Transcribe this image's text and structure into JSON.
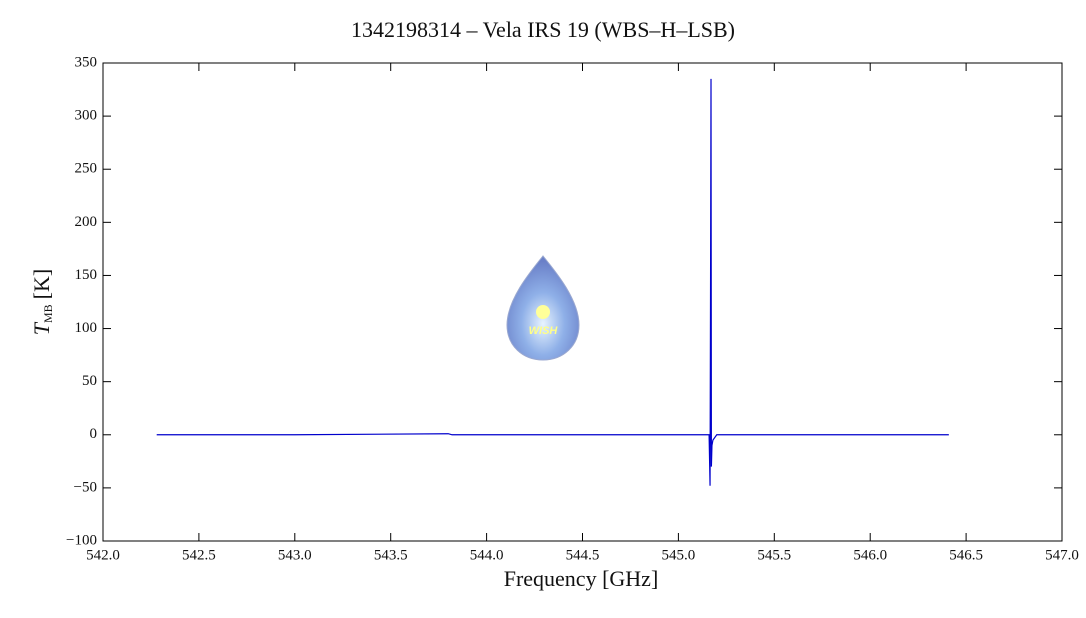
{
  "chart_data": {
    "type": "line",
    "title": "1342198314 – Vela IRS 19 (WBS–H–LSB)",
    "xlabel": "Frequency [GHz]",
    "ylabel": {
      "symbol": "T",
      "subscript": "MB",
      "unit": "[K]"
    },
    "annotation": "WISH",
    "x": [
      542.28,
      543.0,
      543.8,
      543.82,
      544.4,
      545.0,
      545.16,
      545.165,
      545.168,
      545.17,
      545.172,
      545.175,
      545.18,
      545.2,
      545.5,
      546.0,
      546.41
    ],
    "series": [
      {
        "color": "#0000cc",
        "values": [
          0,
          0,
          1,
          0,
          0,
          0,
          0,
          -48,
          168,
          335,
          -30,
          -10,
          -5,
          0,
          0,
          0,
          0
        ]
      }
    ],
    "xlim": [
      542.0,
      547.0
    ],
    "xticks": [
      {
        "value": 542,
        "label": "542.0"
      },
      {
        "value": 542.5,
        "label": "542.5"
      },
      {
        "value": 543,
        "label": "543.0"
      },
      {
        "value": 543.5,
        "label": "543.5"
      },
      {
        "value": 544,
        "label": "544.0"
      },
      {
        "value": 544.5,
        "label": "544.5"
      },
      {
        "value": 545,
        "label": "545.0"
      },
      {
        "value": 545.5,
        "label": "545.5"
      },
      {
        "value": 546,
        "label": "546.0"
      },
      {
        "value": 546.5,
        "label": "546.5"
      },
      {
        "value": 547,
        "label": "547.0"
      }
    ],
    "ylim": [
      -100,
      350
    ],
    "yticks": [
      {
        "value": -100,
        "label": "−100"
      },
      {
        "value": -50,
        "label": "−50"
      },
      0,
      50,
      100,
      150,
      200,
      250,
      300,
      350
    ],
    "grid": false
  }
}
